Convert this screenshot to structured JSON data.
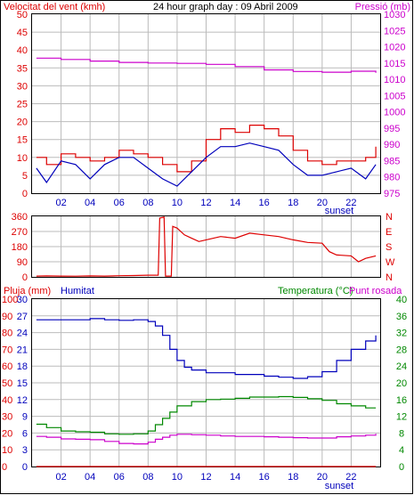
{
  "title": "24 hour graph day : 09 Abril 2009",
  "colors": {
    "red": "#dd0000",
    "blue": "#0000bb",
    "magenta": "#cc00cc",
    "green": "#008800",
    "grid": "#bbbbbb",
    "frame": "#000000"
  },
  "x_ticks": [
    "02",
    "04",
    "06",
    "08",
    "10",
    "12",
    "14",
    "16",
    "18",
    "20",
    "22"
  ],
  "chart_data": [
    {
      "type": "line",
      "id": "wind-pressure",
      "left_label": "Velocitat del vent (kmh)",
      "right_label": "Pressió (mb)",
      "x_range": [
        0,
        24
      ],
      "left_ticks": [
        "0",
        "5",
        "10",
        "15",
        "20",
        "25",
        "30",
        "35",
        "40",
        "45",
        "50"
      ],
      "right_ticks": [
        "975",
        "980",
        "985",
        "990",
        "995",
        "1000",
        "1005",
        "1010",
        "1015",
        "1020",
        "1025",
        "1030"
      ],
      "ylim_left": [
        0,
        50
      ],
      "ylim_right": [
        975,
        1030
      ],
      "sunset_label": "sunset",
      "sunset_hour": 20.3,
      "series": [
        {
          "name": "Velocitat del vent (kmh)",
          "axis": "left",
          "color": "red",
          "style": "step",
          "x": [
            0.3,
            1,
            2,
            3,
            4,
            5,
            6,
            7,
            8,
            9,
            10,
            11,
            12,
            13,
            14,
            15,
            16,
            17,
            18,
            19,
            20,
            21,
            22,
            23,
            23.7
          ],
          "y": [
            10,
            8,
            11,
            10,
            9,
            10,
            12,
            11,
            10,
            8,
            6,
            9,
            15,
            18,
            17,
            19,
            18,
            16,
            12,
            9,
            8,
            9,
            9,
            10,
            13
          ]
        },
        {
          "axis": "left",
          "color": "blue",
          "style": "line",
          "x": [
            0.3,
            1,
            2,
            3,
            4,
            5,
            6,
            7,
            8,
            9,
            10,
            11,
            12,
            13,
            14,
            15,
            16,
            17,
            18,
            19,
            20,
            21,
            22,
            23,
            23.7
          ],
          "y": [
            7,
            3,
            9,
            8,
            4,
            8,
            10,
            10,
            7,
            4,
            2,
            6,
            10,
            13,
            13,
            14,
            13,
            12,
            8,
            5,
            5,
            6,
            7,
            4,
            8
          ]
        },
        {
          "name": "Pressió (mb)",
          "axis": "right",
          "color": "magenta",
          "style": "step",
          "x": [
            0.3,
            2,
            4,
            6,
            8,
            10,
            12,
            14,
            16,
            18,
            20,
            22,
            23.7
          ],
          "y": [
            1016.5,
            1016.1,
            1015.6,
            1015.2,
            1015.0,
            1014.9,
            1014.6,
            1013.9,
            1012.9,
            1012.4,
            1012.2,
            1012.5,
            1012.0
          ]
        }
      ]
    },
    {
      "type": "scatter",
      "id": "wind-direction",
      "y_unit": "degrees",
      "left_ticks": [
        "0",
        "90",
        "180",
        "270",
        "360"
      ],
      "right_ticks": [
        "N",
        "W",
        "S",
        "E",
        "N"
      ],
      "ylim": [
        0,
        360
      ],
      "series": [
        {
          "color": "red",
          "style": "line",
          "x": [
            0.3,
            1,
            2,
            3,
            4,
            5,
            6,
            7,
            8,
            8.7,
            8.8,
            9.1,
            9.2,
            9.6,
            9.7,
            10,
            10.5,
            11,
            11.5,
            12,
            13,
            14,
            15,
            16,
            17,
            17.5,
            18,
            19,
            20,
            20.5,
            21,
            22,
            22.5,
            23,
            23.7
          ],
          "y": [
            5,
            6,
            5,
            4,
            6,
            5,
            7,
            8,
            10,
            10,
            350,
            355,
            5,
            5,
            300,
            290,
            250,
            230,
            210,
            220,
            240,
            230,
            260,
            250,
            240,
            230,
            220,
            205,
            200,
            150,
            130,
            125,
            90,
            110,
            125
          ]
        }
      ]
    },
    {
      "type": "line",
      "id": "rain-humidity-temp",
      "labels": [
        "Pluja (mm)",
        "Humitat",
        "Temperatura (°C)",
        "Punt rosada"
      ],
      "left_ticks": [
        "0",
        "10",
        "20",
        "30",
        "40",
        "50",
        "60",
        "70",
        "80",
        "90",
        "100"
      ],
      "left_ticks_inner": [
        "0",
        "3",
        "6",
        "9",
        "12",
        "15",
        "18",
        "21",
        "24",
        "27",
        "30"
      ],
      "right_ticks": [
        "0",
        "4",
        "8",
        "12",
        "16",
        "20",
        "24",
        "28",
        "32",
        "36",
        "40"
      ],
      "ylim_rain": [
        0,
        100
      ],
      "ylim_humidity": [
        0,
        30
      ],
      "ylim_temp": [
        0,
        40
      ],
      "sunset_label": "sunset",
      "series": [
        {
          "name": "Pluja (mm)",
          "axis": "rain",
          "color": "red",
          "style": "line",
          "x": [
            0.3,
            23.7
          ],
          "y": [
            0,
            0
          ]
        },
        {
          "name": "Humitat",
          "axis": "humidity",
          "color": "blue",
          "style": "step",
          "x": [
            0.3,
            2,
            3,
            4,
            5,
            6,
            7,
            8,
            8.5,
            9,
            9.5,
            10,
            10.5,
            11,
            12,
            13,
            14,
            15,
            16,
            17,
            18,
            19,
            20,
            21,
            22,
            23,
            23.7
          ],
          "y": [
            26.3,
            26.3,
            26.3,
            26.5,
            26.3,
            26.2,
            26.3,
            26.0,
            25.2,
            23.5,
            21.0,
            19.0,
            17.8,
            17.3,
            16.8,
            16.8,
            16.5,
            16.5,
            16.2,
            16.0,
            15.8,
            16.1,
            17.0,
            19.0,
            21.0,
            22.5,
            23.5
          ]
        },
        {
          "name": "Temperatura (°C)",
          "axis": "temp",
          "color": "green",
          "style": "step",
          "x": [
            0.3,
            1,
            2,
            3,
            4,
            5,
            6,
            7,
            8,
            8.5,
            9,
            9.5,
            10,
            11,
            12,
            13,
            14,
            15,
            16,
            17,
            18,
            19,
            20,
            21,
            22,
            23,
            23.7
          ],
          "y": [
            10.1,
            9.3,
            8.5,
            8.3,
            8.2,
            7.8,
            7.7,
            7.8,
            8.5,
            10.0,
            11.5,
            13.0,
            14.5,
            15.5,
            16.0,
            16.1,
            16.3,
            16.6,
            16.6,
            16.7,
            16.5,
            16.2,
            15.8,
            15.0,
            14.5,
            14.0,
            14.0
          ]
        },
        {
          "name": "Punt rosada",
          "axis": "temp",
          "color": "magenta",
          "style": "step",
          "x": [
            0.3,
            1,
            2,
            3,
            4,
            5,
            6,
            7,
            8,
            8.5,
            9,
            9.5,
            10,
            11,
            12,
            13,
            14,
            15,
            16,
            17,
            18,
            19,
            20,
            21,
            22,
            23,
            23.7
          ],
          "y": [
            7.2,
            7.0,
            6.6,
            6.5,
            6.4,
            6.0,
            5.5,
            5.4,
            5.8,
            6.5,
            7.0,
            7.5,
            7.7,
            7.6,
            7.5,
            7.3,
            7.2,
            7.2,
            7.1,
            7.0,
            6.9,
            6.8,
            6.8,
            7.1,
            7.3,
            7.5,
            7.8
          ]
        }
      ]
    }
  ]
}
